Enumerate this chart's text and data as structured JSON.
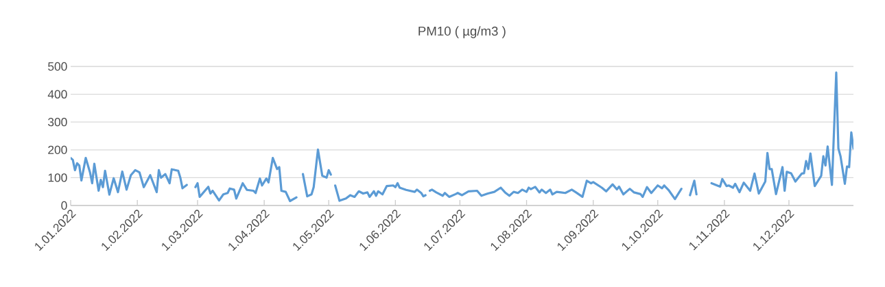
{
  "chart_data": {
    "type": "line",
    "title": "PM10 ( µg/m3 )",
    "x": [
      "2022-01-01",
      "2022-01-02",
      "2022-01-03",
      "2022-01-04",
      "2022-01-05",
      "2022-01-06",
      "2022-01-08",
      "2022-01-10",
      "2022-01-11",
      "2022-01-12",
      "2022-01-14",
      "2022-01-15",
      "2022-01-16",
      "2022-01-17",
      "2022-01-19",
      "2022-01-21",
      "2022-01-23",
      "2022-01-25",
      "2022-01-27",
      "2022-01-29",
      "2022-01-31",
      "2022-02-02",
      "2022-02-04",
      "2022-02-07",
      "2022-02-10",
      "2022-02-11",
      "2022-02-12",
      "2022-02-14",
      "2022-02-16",
      "2022-02-17",
      "2022-02-20",
      "2022-02-21",
      "2022-02-22",
      "2022-02-24",
      "2022-02-26",
      "2022-02-28",
      "2022-03-01",
      "2022-03-02",
      "2022-03-06",
      "2022-03-07",
      "2022-03-08",
      "2022-03-11",
      "2022-03-13",
      "2022-03-15",
      "2022-03-16",
      "2022-03-18",
      "2022-03-19",
      "2022-03-22",
      "2022-03-24",
      "2022-03-27",
      "2022-03-28",
      "2022-03-30",
      "2022-03-31",
      "2022-04-02",
      "2022-04-03",
      "2022-04-05",
      "2022-04-07",
      "2022-04-08",
      "2022-04-09",
      "2022-04-11",
      "2022-04-13",
      "2022-04-16",
      "2022-04-18",
      "2022-04-19",
      "2022-04-21",
      "2022-04-23",
      "2022-04-24",
      "2022-04-26",
      "2022-04-28",
      "2022-04-30",
      "2022-05-01",
      "2022-05-02",
      "2022-05-03",
      "2022-05-04",
      "2022-05-06",
      "2022-05-09",
      "2022-05-11",
      "2022-05-13",
      "2022-05-15",
      "2022-05-17",
      "2022-05-19",
      "2022-05-20",
      "2022-05-22",
      "2022-05-23",
      "2022-05-24",
      "2022-05-26",
      "2022-05-28",
      "2022-05-31",
      "2022-06-01",
      "2022-06-02",
      "2022-06-03",
      "2022-06-06",
      "2022-06-10",
      "2022-06-11",
      "2022-06-13",
      "2022-06-14",
      "2022-06-15",
      "2022-06-16",
      "2022-06-17",
      "2022-06-18",
      "2022-06-20",
      "2022-06-23",
      "2022-06-24",
      "2022-06-26",
      "2022-06-29",
      "2022-06-30",
      "2022-07-02",
      "2022-07-05",
      "2022-07-09",
      "2022-07-11",
      "2022-07-14",
      "2022-07-17",
      "2022-07-20",
      "2022-07-22",
      "2022-07-24",
      "2022-07-26",
      "2022-07-28",
      "2022-07-30",
      "2022-08-01",
      "2022-08-02",
      "2022-08-03",
      "2022-08-05",
      "2022-08-07",
      "2022-08-08",
      "2022-08-10",
      "2022-08-12",
      "2022-08-13",
      "2022-08-15",
      "2022-08-17",
      "2022-08-19",
      "2022-08-22",
      "2022-08-24",
      "2022-08-27",
      "2022-08-29",
      "2022-08-31",
      "2022-09-01",
      "2022-09-03",
      "2022-09-05",
      "2022-09-07",
      "2022-09-10",
      "2022-09-12",
      "2022-09-13",
      "2022-09-15",
      "2022-09-18",
      "2022-09-20",
      "2022-09-23",
      "2022-09-24",
      "2022-09-26",
      "2022-09-28",
      "2022-10-01",
      "2022-10-03",
      "2022-10-04",
      "2022-10-06",
      "2022-10-09",
      "2022-10-12",
      "2022-10-14",
      "2022-10-16",
      "2022-10-18",
      "2022-10-19",
      "2022-10-22",
      "2022-10-26",
      "2022-10-30",
      "2022-10-31",
      "2022-11-02",
      "2022-11-03",
      "2022-11-05",
      "2022-11-06",
      "2022-11-08",
      "2022-11-10",
      "2022-11-13",
      "2022-11-15",
      "2022-11-17",
      "2022-11-20",
      "2022-11-21",
      "2022-11-22",
      "2022-11-23",
      "2022-11-25",
      "2022-11-28",
      "2022-11-29",
      "2022-11-30",
      "2022-12-02",
      "2022-12-04",
      "2022-12-07",
      "2022-12-08",
      "2022-12-09",
      "2022-12-10",
      "2022-12-11",
      "2022-12-13",
      "2022-12-16",
      "2022-12-17",
      "2022-12-18",
      "2022-12-19",
      "2022-12-21",
      "2022-12-23",
      "2022-12-24",
      "2022-12-25",
      "2022-12-27",
      "2022-12-28",
      "2022-12-29",
      "2022-12-30",
      "2022-12-31"
    ],
    "values": [
      171,
      164,
      127,
      152,
      144,
      90,
      171,
      119,
      80,
      150,
      53,
      92,
      66,
      125,
      39,
      98,
      48,
      122,
      57,
      109,
      127,
      119,
      66,
      109,
      48,
      127,
      100,
      113,
      80,
      130,
      125,
      100,
      62,
      74,
      null,
      66,
      80,
      31,
      67,
      43,
      53,
      18,
      40,
      45,
      61,
      57,
      25,
      80,
      56,
      53,
      45,
      97,
      72,
      97,
      83,
      171,
      131,
      138,
      53,
      49,
      16,
      29,
      null,
      113,
      33,
      40,
      66,
      201,
      107,
      100,
      127,
      111,
      null,
      72,
      17,
      25,
      37,
      31,
      51,
      43,
      47,
      31,
      51,
      35,
      51,
      40,
      70,
      72,
      66,
      80,
      64,
      56,
      49,
      57,
      45,
      33,
      37,
      null,
      53,
      57,
      47,
      35,
      45,
      31,
      41,
      45,
      37,
      51,
      53,
      35,
      43,
      49,
      64,
      47,
      35,
      49,
      45,
      57,
      49,
      64,
      59,
      67,
      47,
      57,
      45,
      57,
      40,
      49,
      47,
      45,
      57,
      47,
      31,
      89,
      80,
      84,
      74,
      64,
      51,
      76,
      58,
      68,
      40,
      60,
      47,
      41,
      31,
      66,
      45,
      72,
      62,
      72,
      56,
      23,
      60,
      null,
      37,
      89,
      40,
      null,
      80,
      68,
      95,
      70,
      72,
      64,
      78,
      48,
      82,
      53,
      115,
      43,
      86,
      189,
      131,
      131,
      41,
      138,
      53,
      121,
      116,
      86,
      115,
      116,
      160,
      131,
      187,
      70,
      107,
      177,
      144,
      212,
      74,
      478,
      205,
      177,
      78,
      140,
      138,
      263,
      205
    ],
    "color": "#5b9bd5",
    "xlim": [
      "2022-01-01",
      "2022-12-31"
    ],
    "xticks": [
      {
        "value": "2022-01-01",
        "label": "1.01.2022"
      },
      {
        "value": "2022-02-01",
        "label": "1.02.2022"
      },
      {
        "value": "2022-03-01",
        "label": "1.03.2022"
      },
      {
        "value": "2022-04-01",
        "label": "1.04.2022"
      },
      {
        "value": "2022-05-01",
        "label": "1.05.2022"
      },
      {
        "value": "2022-06-01",
        "label": "1.06.2022"
      },
      {
        "value": "2022-07-01",
        "label": "1.07.2022"
      },
      {
        "value": "2022-08-01",
        "label": "1.08.2022"
      },
      {
        "value": "2022-09-01",
        "label": "1.09.2022"
      },
      {
        "value": "2022-10-01",
        "label": "1.10.2022"
      },
      {
        "value": "2022-11-01",
        "label": "1.11.2022"
      },
      {
        "value": "2022-12-01",
        "label": "1.12.2022"
      }
    ],
    "ylim": [
      0,
      500
    ],
    "yticks": [
      0,
      100,
      200,
      300,
      400,
      500
    ],
    "grid": "y",
    "marker": "none",
    "line_style": "solid"
  }
}
